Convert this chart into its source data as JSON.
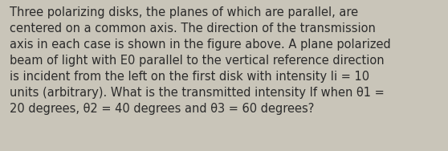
{
  "text": "Three polarizing disks, the planes of which are parallel, are\ncentered on a common axis. The direction of the transmission\naxis in each case is shown in the figure above. A plane polarized\nbeam of light with E0 parallel to the vertical reference direction\nis incident from the left on the first disk with intensity Ii = 10\nunits (arbitrary). What is the transmitted intensity If when θ1 =\n20 degrees, θ2 = 40 degrees and θ3 = 60 degrees?",
  "background_color": "#c9c5b9",
  "text_color": "#2b2b2b",
  "font_size": 10.5,
  "fig_width": 5.58,
  "fig_height": 1.88,
  "dpi": 100
}
